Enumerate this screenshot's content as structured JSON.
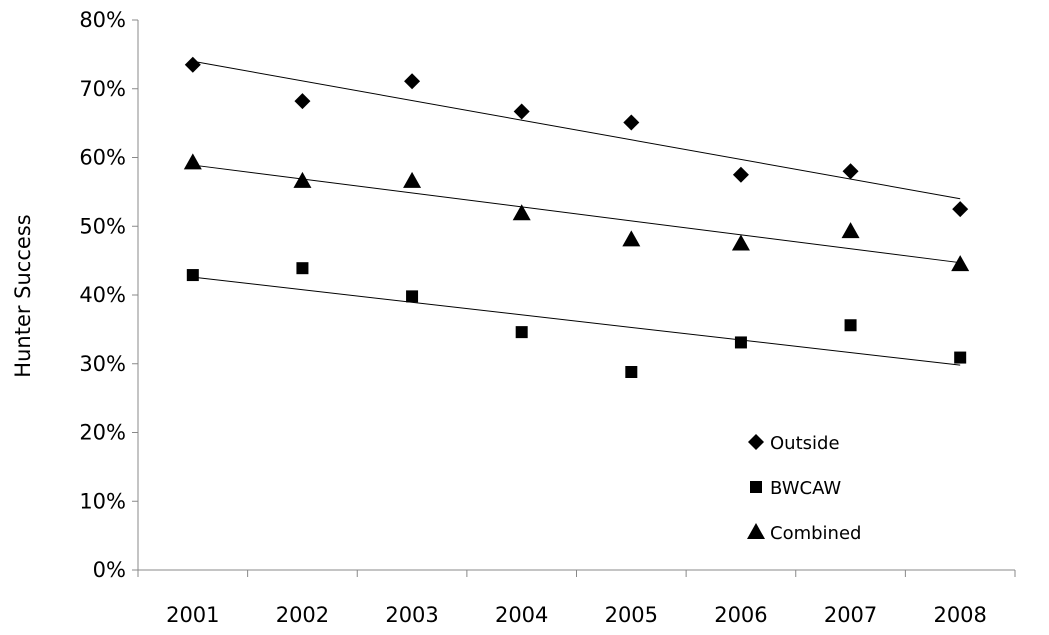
{
  "chart_data": {
    "type": "scatter",
    "title": "",
    "xlabel": "",
    "ylabel": "Hunter Success",
    "categories": [
      "2001",
      "2002",
      "2003",
      "2004",
      "2005",
      "2006",
      "2007",
      "2008"
    ],
    "ylim": [
      0,
      80
    ],
    "yticks": [
      "0%",
      "10%",
      "20%",
      "30%",
      "40%",
      "50%",
      "60%",
      "70%",
      "80%"
    ],
    "grid": false,
    "legend_position": "bottom-right",
    "series": [
      {
        "name": "Outside",
        "marker": "diamond",
        "values": [
          73.5,
          68.2,
          71.1,
          66.7,
          65.1,
          57.5,
          58.0,
          52.5
        ],
        "trendline": [
          74.0,
          54.0
        ]
      },
      {
        "name": "BWCAW",
        "marker": "square",
        "values": [
          42.9,
          43.9,
          39.8,
          34.6,
          28.8,
          33.1,
          35.6,
          30.9
        ],
        "trendline": [
          42.6,
          29.8
        ]
      },
      {
        "name": "Combined",
        "marker": "triangle",
        "values": [
          59.3,
          56.6,
          56.6,
          51.9,
          48.1,
          47.5,
          49.3,
          44.5
        ],
        "trendline": [
          58.9,
          44.7
        ]
      }
    ]
  }
}
